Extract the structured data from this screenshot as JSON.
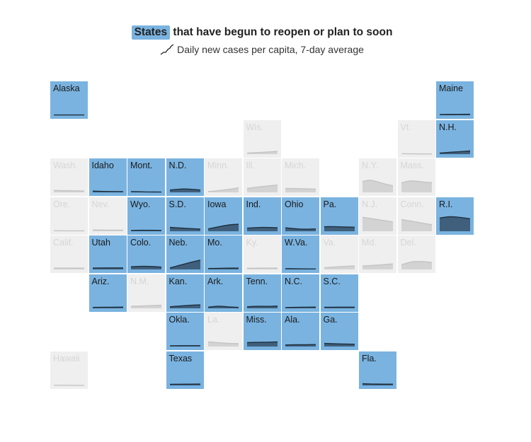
{
  "header": {
    "title_highlight": "States",
    "title_rest": "that have begun to reopen or plan to soon",
    "key_label": "Daily new cases per capita, 7-day average"
  },
  "colors": {
    "open_tile": "#7ab3e0",
    "closed_tile": "#efefef",
    "open_area": "#3f5f7c",
    "open_line": "#1f2f3d",
    "closed_area": "#d3d3d3",
    "closed_line": "#c4c4c4",
    "closed_label": "#d6d6d6"
  },
  "chart_data": {
    "type": "area",
    "title": "States that have begun to reopen or plan to soon",
    "subtitle": "Daily new cases per capita, 7-day average",
    "layout": "tile-grid map",
    "states": [
      {
        "label": "Alaska",
        "open": true,
        "row": 0,
        "col": 0,
        "values": [
          0.04,
          0.04,
          0.04,
          0.04
        ]
      },
      {
        "label": "Maine",
        "open": true,
        "row": 0,
        "col": 10,
        "values": [
          0.1,
          0.11,
          0.12,
          0.12,
          0.13
        ]
      },
      {
        "label": "Wis.",
        "open": false,
        "row": 1,
        "col": 5,
        "values": [
          0.14,
          0.18,
          0.24,
          0.3,
          0.36
        ]
      },
      {
        "label": "Vt.",
        "open": false,
        "row": 1,
        "col": 9,
        "values": [
          0.06,
          0.04,
          0.03,
          0.03
        ]
      },
      {
        "label": "N.H.",
        "open": true,
        "row": 1,
        "col": 10,
        "values": [
          0.14,
          0.22,
          0.28,
          0.34,
          0.42
        ]
      },
      {
        "label": "Wash.",
        "open": false,
        "row": 2,
        "col": 0,
        "values": [
          0.25,
          0.22,
          0.2,
          0.18
        ]
      },
      {
        "label": "Idaho",
        "open": true,
        "row": 2,
        "col": 1,
        "values": [
          0.16,
          0.12,
          0.1,
          0.09
        ]
      },
      {
        "label": "Mont.",
        "open": true,
        "row": 2,
        "col": 2,
        "values": [
          0.1,
          0.06,
          0.05,
          0.04
        ]
      },
      {
        "label": "N.D.",
        "open": true,
        "row": 2,
        "col": 3,
        "values": [
          0.3,
          0.4,
          0.45,
          0.38,
          0.3
        ]
      },
      {
        "label": "Minn.",
        "open": false,
        "row": 2,
        "col": 4,
        "values": [
          0.1,
          0.18,
          0.3,
          0.42,
          0.58
        ]
      },
      {
        "label": "Ill.",
        "open": false,
        "row": 2,
        "col": 5,
        "values": [
          0.5,
          0.65,
          0.75,
          0.85,
          0.95
        ]
      },
      {
        "label": "Mich.",
        "open": false,
        "row": 2,
        "col": 6,
        "values": [
          0.5,
          0.48,
          0.45,
          0.42
        ]
      },
      {
        "label": "N.Y.",
        "open": false,
        "row": 2,
        "col": 8,
        "values": [
          1.4,
          1.6,
          1.35,
          1.05,
          0.85
        ]
      },
      {
        "label": "Mass.",
        "open": false,
        "row": 2,
        "col": 9,
        "values": [
          1.2,
          1.5,
          1.45,
          1.3,
          1.25
        ]
      },
      {
        "label": "Ore.",
        "open": false,
        "row": 3,
        "col": 0,
        "values": [
          0.06,
          0.06,
          0.05,
          0.05
        ]
      },
      {
        "label": "Nev.",
        "open": false,
        "row": 3,
        "col": 1,
        "values": [
          0.16,
          0.15,
          0.14,
          0.14
        ]
      },
      {
        "label": "Wyo.",
        "open": true,
        "row": 3,
        "col": 2,
        "values": [
          0.1,
          0.14,
          0.12,
          0.11
        ]
      },
      {
        "label": "S.D.",
        "open": true,
        "row": 3,
        "col": 3,
        "values": [
          0.5,
          0.42,
          0.34,
          0.28
        ]
      },
      {
        "label": "Iowa",
        "open": true,
        "row": 3,
        "col": 4,
        "values": [
          0.3,
          0.5,
          0.7,
          0.85,
          0.9
        ]
      },
      {
        "label": "Ind.",
        "open": true,
        "row": 3,
        "col": 5,
        "values": [
          0.4,
          0.48,
          0.5,
          0.45
        ]
      },
      {
        "label": "Ohio",
        "open": true,
        "row": 3,
        "col": 6,
        "values": [
          0.45,
          0.3,
          0.25,
          0.3
        ]
      },
      {
        "label": "Pa.",
        "open": true,
        "row": 3,
        "col": 7,
        "values": [
          0.58,
          0.6,
          0.55,
          0.52
        ]
      },
      {
        "label": "N.J.",
        "open": false,
        "row": 3,
        "col": 8,
        "values": [
          1.8,
          1.6,
          1.4,
          1.2
        ]
      },
      {
        "label": "Conn.",
        "open": false,
        "row": 3,
        "col": 9,
        "values": [
          1.5,
          1.3,
          1.05,
          0.85
        ]
      },
      {
        "label": "R.I.",
        "open": true,
        "row": 3,
        "col": 10,
        "values": [
          1.7,
          1.9,
          1.8,
          1.6
        ]
      },
      {
        "label": "Calif.",
        "open": false,
        "row": 4,
        "col": 0,
        "values": [
          0.18,
          0.17,
          0.17,
          0.16
        ]
      },
      {
        "label": "Utah",
        "open": true,
        "row": 4,
        "col": 1,
        "values": [
          0.18,
          0.2,
          0.2,
          0.2
        ]
      },
      {
        "label": "Colo.",
        "open": true,
        "row": 4,
        "col": 2,
        "values": [
          0.35,
          0.42,
          0.38,
          0.3
        ]
      },
      {
        "label": "Neb.",
        "open": true,
        "row": 4,
        "col": 3,
        "values": [
          0.2,
          0.55,
          0.9,
          1.2
        ]
      },
      {
        "label": "Mo.",
        "open": true,
        "row": 4,
        "col": 4,
        "values": [
          0.12,
          0.14,
          0.16,
          0.18
        ]
      },
      {
        "label": "Ky.",
        "open": false,
        "row": 4,
        "col": 5,
        "values": [
          0.15,
          0.16,
          0.18,
          0.17
        ]
      },
      {
        "label": "W.Va.",
        "open": true,
        "row": 4,
        "col": 6,
        "values": [
          0.1,
          0.08,
          0.07,
          0.06
        ]
      },
      {
        "label": "Va.",
        "open": false,
        "row": 4,
        "col": 7,
        "values": [
          0.22,
          0.32,
          0.4,
          0.45
        ]
      },
      {
        "label": "Md.",
        "open": false,
        "row": 4,
        "col": 8,
        "values": [
          0.45,
          0.52,
          0.6,
          0.72
        ]
      },
      {
        "label": "Del.",
        "open": false,
        "row": 4,
        "col": 9,
        "values": [
          0.6,
          1.0,
          1.05,
          0.9
        ]
      },
      {
        "label": "Ariz.",
        "open": true,
        "row": 5,
        "col": 1,
        "values": [
          0.12,
          0.14,
          0.15,
          0.16
        ]
      },
      {
        "label": "N.M.",
        "open": false,
        "row": 5,
        "col": 2,
        "values": [
          0.25,
          0.3,
          0.35,
          0.4
        ]
      },
      {
        "label": "Kan.",
        "open": true,
        "row": 5,
        "col": 3,
        "values": [
          0.2,
          0.3,
          0.4,
          0.45
        ]
      },
      {
        "label": "Ark.",
        "open": true,
        "row": 5,
        "col": 4,
        "values": [
          0.15,
          0.3,
          0.18,
          0.12
        ]
      },
      {
        "label": "Tenn.",
        "open": true,
        "row": 5,
        "col": 5,
        "values": [
          0.2,
          0.28,
          0.24,
          0.3
        ]
      },
      {
        "label": "N.C.",
        "open": true,
        "row": 5,
        "col": 6,
        "values": [
          0.1,
          0.14,
          0.15,
          0.16
        ]
      },
      {
        "label": "S.C.",
        "open": true,
        "row": 5,
        "col": 7,
        "values": [
          0.14,
          0.15,
          0.16,
          0.15
        ]
      },
      {
        "label": "Okla.",
        "open": true,
        "row": 6,
        "col": 3,
        "values": [
          0.1,
          0.1,
          0.11,
          0.11
        ]
      },
      {
        "label": "La.",
        "open": false,
        "row": 6,
        "col": 4,
        "values": [
          0.6,
          0.5,
          0.4,
          0.38
        ]
      },
      {
        "label": "Miss.",
        "open": true,
        "row": 6,
        "col": 5,
        "values": [
          0.5,
          0.55,
          0.55,
          0.6
        ]
      },
      {
        "label": "Ala.",
        "open": true,
        "row": 6,
        "col": 6,
        "values": [
          0.2,
          0.24,
          0.22,
          0.26
        ]
      },
      {
        "label": "Ga.",
        "open": true,
        "row": 6,
        "col": 7,
        "values": [
          0.4,
          0.35,
          0.32,
          0.3
        ]
      },
      {
        "label": "Hawaii",
        "open": false,
        "row": 7,
        "col": 0,
        "values": [
          0.03,
          0.02,
          0.01,
          0.01
        ]
      },
      {
        "label": "Texas",
        "open": true,
        "row": 7,
        "col": 3,
        "values": [
          0.14,
          0.16,
          0.16,
          0.18
        ]
      },
      {
        "label": "Fla.",
        "open": true,
        "row": 7,
        "col": 8,
        "values": [
          0.22,
          0.18,
          0.16,
          0.16
        ]
      }
    ]
  }
}
